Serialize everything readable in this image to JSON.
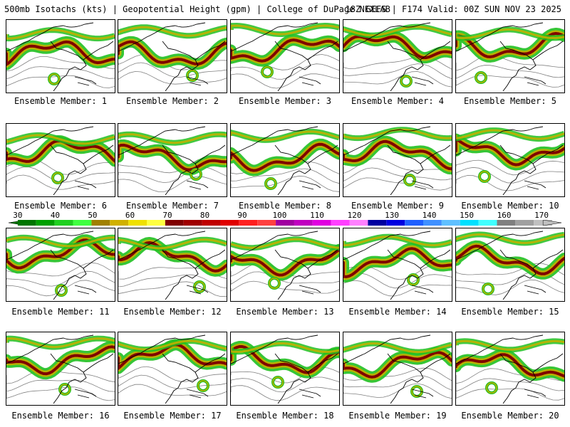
{
  "header": {
    "left_text": "500mb Isotachs (kts) | Geopotential Height (gpm) | College of DuPage NEXLAB",
    "right_text": "18Z GEFS | F174 Valid: 00Z SUN NOV 23 2025"
  },
  "panels": [
    {
      "caption": "Ensemble Member: 1"
    },
    {
      "caption": "Ensemble Member: 2"
    },
    {
      "caption": "Ensemble Member: 3"
    },
    {
      "caption": "Ensemble Member: 4"
    },
    {
      "caption": "Ensemble Member: 5"
    },
    {
      "caption": "Ensemble Member: 6"
    },
    {
      "caption": "Ensemble Member: 7"
    },
    {
      "caption": "Ensemble Member: 8"
    },
    {
      "caption": "Ensemble Member: 9"
    },
    {
      "caption": "Ensemble Member: 10"
    },
    {
      "caption": "Ensemble Member: 11"
    },
    {
      "caption": "Ensemble Member: 12"
    },
    {
      "caption": "Ensemble Member: 13"
    },
    {
      "caption": "Ensemble Member: 14"
    },
    {
      "caption": "Ensemble Member: 15"
    },
    {
      "caption": "Ensemble Member: 16"
    },
    {
      "caption": "Ensemble Member: 17"
    },
    {
      "caption": "Ensemble Member: 18"
    },
    {
      "caption": "Ensemble Member: 19"
    },
    {
      "caption": "Ensemble Member: 20"
    }
  ],
  "colorbar": {
    "tick_labels": [
      "30",
      "40",
      "50",
      "60",
      "70",
      "80",
      "90",
      "100",
      "110",
      "120",
      "130",
      "140",
      "150",
      "160",
      "170"
    ],
    "colors": [
      "#007500",
      "#00a000",
      "#20d020",
      "#40ff40",
      "#a08000",
      "#d0b000",
      "#f0e000",
      "#ffff40",
      "#800000",
      "#a00000",
      "#c00000",
      "#e00000",
      "#ff2020",
      "#ff4040",
      "#a000a0",
      "#c000c0",
      "#e000e0",
      "#ff40ff",
      "#ff80ff",
      "#0000a0",
      "#0000e0",
      "#2060ff",
      "#4090ff",
      "#60c0ff",
      "#00e0ff",
      "#40ffff",
      "#808080",
      "#a0a0a0",
      "#c0c0c0"
    ]
  },
  "map_colors": {
    "slow": "#20c020",
    "medium": "#c0b000",
    "fast": "#800000",
    "height_contour": "#808080",
    "coast": "#000000"
  }
}
